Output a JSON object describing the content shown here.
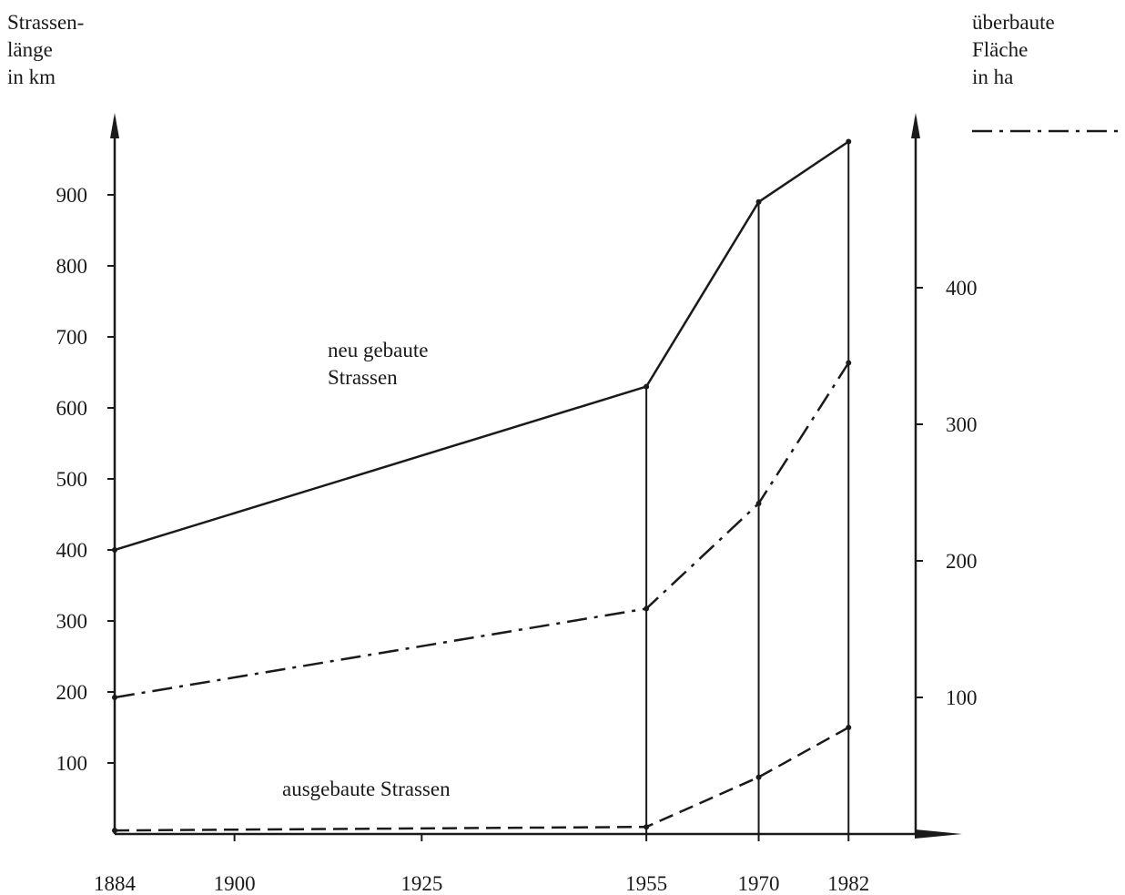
{
  "chart_data": {
    "type": "line",
    "title": "",
    "ylabel_left": "Strassen-\nlänge\nin km",
    "ylabel_right": "überbaute\nFläche\nin ha",
    "x": [
      1884,
      1900,
      1925,
      1955,
      1970,
      1982
    ],
    "x_tick_labels": [
      "1884",
      "1900",
      "1925",
      "1955",
      "1970",
      "1982"
    ],
    "x_range": [
      1884,
      1994
    ],
    "ylim_left": [
      0,
      1000
    ],
    "ylim_right": [
      0,
      520
    ],
    "y_ticks_left": [
      100,
      200,
      300,
      400,
      500,
      600,
      700,
      800,
      900
    ],
    "y_ticks_right": [
      100,
      200,
      300,
      400
    ],
    "grid": false,
    "vertical_markers": [
      1955,
      1970,
      1982
    ],
    "series": [
      {
        "name": "neu gebaute Strassen",
        "axis": "left",
        "style": "solid",
        "points": [
          [
            1884,
            400
          ],
          [
            1955,
            630
          ],
          [
            1970,
            890
          ],
          [
            1982,
            975
          ]
        ]
      },
      {
        "name": "ausgebaute Strassen",
        "axis": "left",
        "style": "dashed",
        "points": [
          [
            1884,
            5
          ],
          [
            1955,
            10
          ],
          [
            1970,
            80
          ],
          [
            1982,
            150
          ]
        ]
      },
      {
        "axis": "right",
        "style": "dashdot",
        "points": [
          [
            1884,
            100
          ],
          [
            1955,
            165
          ],
          [
            1970,
            242
          ],
          [
            1982,
            345
          ]
        ]
      }
    ],
    "legend": [
      {
        "style": "dashdot",
        "label": "",
        "placement": "top-right"
      }
    ],
    "colors": {
      "ink": "#1a1a1a",
      "background": "#ffffff"
    }
  }
}
